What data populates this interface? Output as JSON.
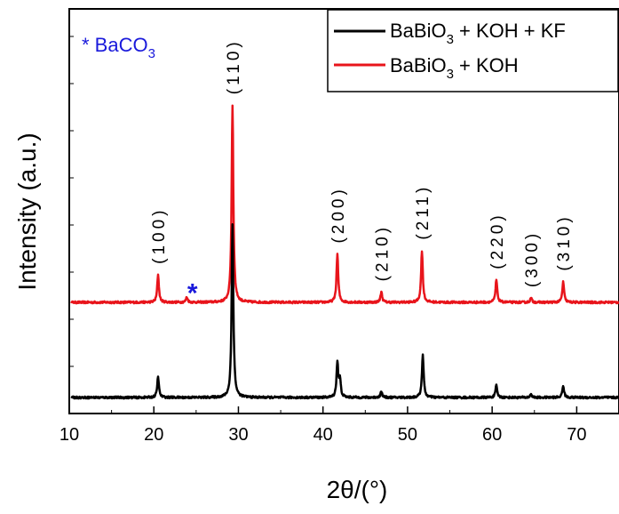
{
  "chart_data": {
    "type": "line",
    "title": "",
    "xlabel": "2θ/(°)",
    "ylabel": "Intensity (a.u.)",
    "xlim": [
      10,
      75
    ],
    "x_ticks": [
      10,
      20,
      30,
      40,
      50,
      60,
      70
    ],
    "y_ticks_labeled": false,
    "grid": false,
    "legend_position": "top-right",
    "series": [
      {
        "name": "BaBiO3 + KOH + KF",
        "name_main": "BaBiO",
        "name_sub": "3",
        "name_tail": " + KOH + KF",
        "color": "#000000",
        "baseline": 0.0,
        "peaks": [
          {
            "x": 20.5,
            "height": 0.12
          },
          {
            "x": 29.3,
            "height": 1.0
          },
          {
            "x": 41.7,
            "height": 0.2
          },
          {
            "x": 42.0,
            "height": 0.1
          },
          {
            "x": 46.9,
            "height": 0.035
          },
          {
            "x": 51.8,
            "height": 0.25
          },
          {
            "x": 60.5,
            "height": 0.07
          },
          {
            "x": 64.6,
            "height": 0.02
          },
          {
            "x": 68.4,
            "height": 0.07
          }
        ]
      },
      {
        "name": "BaBiO3 + KOH",
        "name_main": "BaBiO",
        "name_sub": "3",
        "name_tail": " + KOH",
        "color": "#e8141b",
        "baseline": 0.55,
        "peaks": [
          {
            "x": 20.5,
            "height": 0.16
          },
          {
            "x": 23.9,
            "height": 0.03
          },
          {
            "x": 29.3,
            "height": 1.14
          },
          {
            "x": 41.7,
            "height": 0.28
          },
          {
            "x": 46.9,
            "height": 0.06
          },
          {
            "x": 51.7,
            "height": 0.3
          },
          {
            "x": 60.5,
            "height": 0.13
          },
          {
            "x": 64.6,
            "height": 0.025
          },
          {
            "x": 68.4,
            "height": 0.12
          }
        ]
      }
    ],
    "ylim": [
      -0.05,
      2.3
    ],
    "annotations": {
      "bac03_note": {
        "prefix": "* BaCO",
        "sub": "3",
        "color": "#1a1adb"
      },
      "impurity_marker": {
        "text": "*",
        "x": 23.3,
        "color": "#1a1adb"
      },
      "peak_labels": [
        {
          "text": "(100)",
          "x": 20.5
        },
        {
          "text": "(110)",
          "x": 29.3
        },
        {
          "text": "(200)",
          "x": 41.7
        },
        {
          "text": "(210)",
          "x": 46.9
        },
        {
          "text": "(211)",
          "x": 51.7
        },
        {
          "text": "(220)",
          "x": 60.5
        },
        {
          "text": "(300)",
          "x": 64.6
        },
        {
          "text": "(310)",
          "x": 68.4
        }
      ]
    }
  }
}
